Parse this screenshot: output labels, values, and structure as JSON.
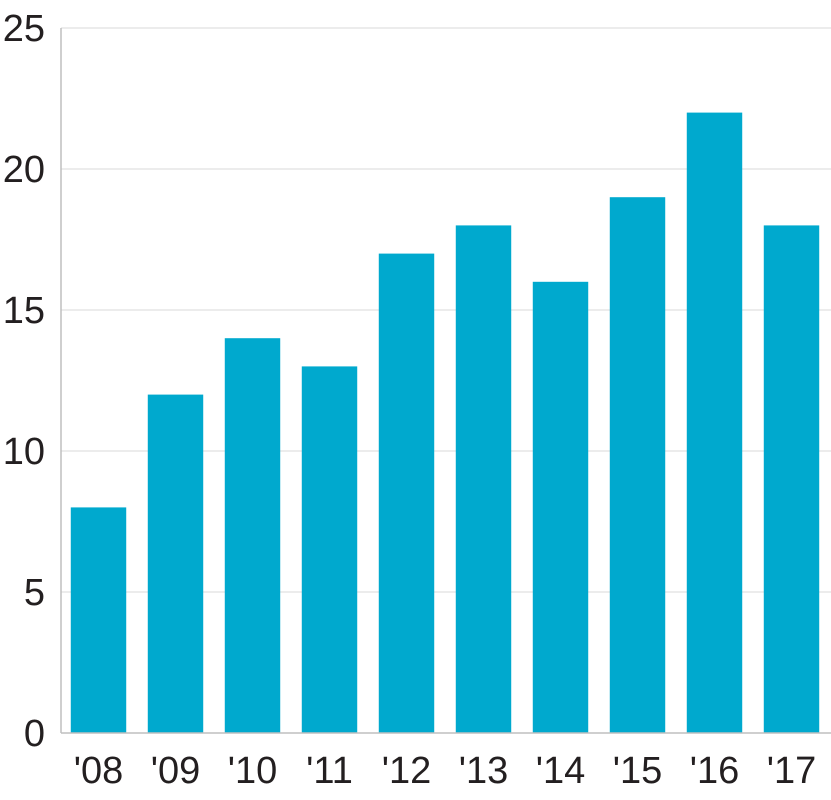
{
  "chart_data": {
    "type": "bar",
    "categories": [
      "'08",
      "'09",
      "'10",
      "'11",
      "'12",
      "'13",
      "'14",
      "'15",
      "'16",
      "'17"
    ],
    "values": [
      8,
      12,
      14,
      13,
      17,
      18,
      16,
      19,
      22,
      18
    ],
    "ylim": [
      0,
      25
    ],
    "yticks": [
      0,
      5,
      10,
      15,
      20,
      25
    ],
    "ytick_labels": [
      "0",
      "5",
      "10",
      "15",
      "20",
      "25"
    ],
    "grid": true,
    "colors": {
      "bar": "#00a9ce",
      "grid": "#d9d9d9",
      "axis": "#bfbfbf",
      "text": "#231f20"
    }
  }
}
